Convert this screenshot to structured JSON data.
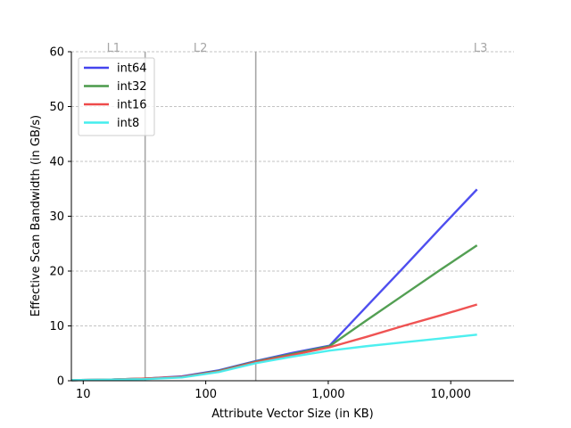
{
  "chart_data": {
    "type": "line",
    "title": "",
    "xlabel": "Attribute Vector Size (in KB)",
    "ylabel": "Effective Scan Bandwidth (in GB/s)",
    "xscale": "log",
    "xlim": [
      8,
      32768
    ],
    "ylim": [
      0,
      60
    ],
    "grid": "horizontal dashed",
    "legend_position": "top-left",
    "x_ticks": [
      {
        "value": 10,
        "label": "10"
      },
      {
        "value": 100,
        "label": "100"
      },
      {
        "value": 1000,
        "label": "1,000"
      },
      {
        "value": 10000,
        "label": "10,000"
      }
    ],
    "y_ticks": [
      {
        "value": 0,
        "label": "0"
      },
      {
        "value": 10,
        "label": "10"
      },
      {
        "value": 20,
        "label": "20"
      },
      {
        "value": 30,
        "label": "30"
      },
      {
        "value": 40,
        "label": "40"
      },
      {
        "value": 50,
        "label": "50"
      },
      {
        "value": 60,
        "label": "60"
      }
    ],
    "cache_boundaries": [
      {
        "name": "L1",
        "x": 32,
        "line": true
      },
      {
        "name": "L2",
        "x": 256,
        "line": true
      },
      {
        "name": "L3",
        "x": 16384,
        "line": false
      }
    ],
    "x": [
      8,
      16,
      32,
      64,
      128,
      256,
      512,
      1024,
      2048,
      4096,
      8192,
      16384
    ],
    "series": [
      {
        "name": "int64",
        "color": "#4444ee",
        "values": [
          0.1,
          0.2,
          0.4,
          0.8,
          1.9,
          3.6,
          5.1,
          6.4,
          13.5,
          20.6,
          27.8,
          34.9
        ]
      },
      {
        "name": "int32",
        "color": "#4a9a4a",
        "values": [
          0.1,
          0.2,
          0.4,
          0.7,
          1.8,
          3.5,
          4.9,
          6.3,
          11.0,
          15.6,
          20.2,
          24.7
        ]
      },
      {
        "name": "int16",
        "color": "#ee4a4a",
        "values": [
          0.1,
          0.2,
          0.4,
          0.7,
          1.7,
          3.4,
          4.7,
          6.1,
          8.0,
          10.0,
          11.9,
          13.9
        ]
      },
      {
        "name": "int8",
        "color": "#44eeee",
        "values": [
          0.1,
          0.2,
          0.3,
          0.6,
          1.6,
          3.2,
          4.4,
          5.5,
          6.3,
          7.0,
          7.7,
          8.4
        ]
      }
    ]
  }
}
